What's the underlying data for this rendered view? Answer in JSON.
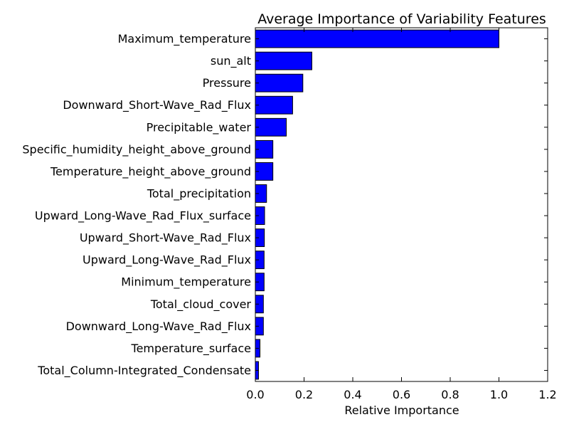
{
  "chart_data": {
    "type": "bar",
    "orientation": "horizontal",
    "title": "Average Importance of Variability Features",
    "xlabel": "Relative Importance",
    "ylabel": "",
    "xlim": [
      0,
      1.2
    ],
    "xticks": [
      "0.0",
      "0.2",
      "0.4",
      "0.6",
      "0.8",
      "1.0",
      "1.2"
    ],
    "grid": false,
    "legend": "none",
    "bar_color": "#0000ff",
    "edge_color": "#000000",
    "categories": [
      "Maximum_temperature",
      "sun_alt",
      "Pressure",
      "Downward_Short-Wave_Rad_Flux",
      "Precipitable_water",
      "Specific_humidity_height_above_ground",
      "Temperature_height_above_ground",
      "Total_precipitation",
      "Upward_Long-Wave_Rad_Flux_surface",
      "Upward_Short-Wave_Rad_Flux",
      "Upward_Long-Wave_Rad_Flux",
      "Minimum_temperature",
      "Total_cloud_cover",
      "Downward_Long-Wave_Rad_Flux",
      "Temperature_surface",
      "Total_Column-Integrated_Condensate"
    ],
    "values": [
      1.0,
      0.232,
      0.195,
      0.153,
      0.127,
      0.072,
      0.072,
      0.046,
      0.038,
      0.037,
      0.036,
      0.036,
      0.033,
      0.033,
      0.019,
      0.013
    ]
  }
}
